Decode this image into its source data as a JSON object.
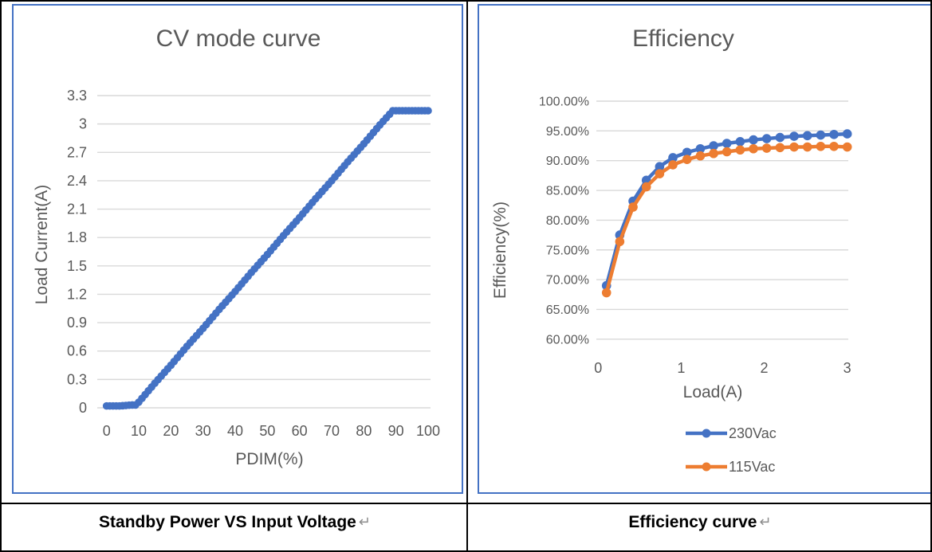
{
  "page": {
    "captions": [
      {
        "text": "Standby Power VS Input Voltage",
        "return_mark": "↵"
      },
      {
        "text": "Efficiency curve",
        "return_mark": "↵"
      }
    ],
    "colors": {
      "series_blue": "#4472C4",
      "series_orange": "#ED7D31",
      "grid": "#D9D9D9",
      "axis_text": "#595959",
      "chart_border": "#4472C4",
      "table_border": "#000000",
      "caption_text": "#000000",
      "return_mark_gray": "#8C8C8C"
    }
  },
  "chart_data": [
    {
      "type": "scatter",
      "title": "CV mode curve",
      "xlabel": "PDIM(%)",
      "ylabel": "Load Current(A)",
      "xlim": [
        0,
        100
      ],
      "ylim": [
        0,
        3.3
      ],
      "grid": true,
      "legend_position": "none",
      "xticks": [
        {
          "v": 0,
          "label": "0"
        },
        {
          "v": 10,
          "label": "10"
        },
        {
          "v": 20,
          "label": "20"
        },
        {
          "v": 30,
          "label": "30"
        },
        {
          "v": 40,
          "label": "40"
        },
        {
          "v": 50,
          "label": "50"
        },
        {
          "v": 60,
          "label": "60"
        },
        {
          "v": 70,
          "label": "70"
        },
        {
          "v": 80,
          "label": "80"
        },
        {
          "v": 90,
          "label": "90"
        },
        {
          "v": 100,
          "label": "100"
        }
      ],
      "yticks": [
        {
          "v": 0,
          "label": "0"
        },
        {
          "v": 0.3,
          "label": "0.3"
        },
        {
          "v": 0.6,
          "label": "0.6"
        },
        {
          "v": 0.9,
          "label": "0.9"
        },
        {
          "v": 1.2,
          "label": "1.2"
        },
        {
          "v": 1.5,
          "label": "1.5"
        },
        {
          "v": 1.8,
          "label": "1.8"
        },
        {
          "v": 2.1,
          "label": "2.1"
        },
        {
          "v": 2.4,
          "label": "2.4"
        },
        {
          "v": 2.7,
          "label": "2.7"
        },
        {
          "v": 3,
          "label": "3"
        },
        {
          "v": 3.3,
          "label": "3.3"
        }
      ],
      "series": [
        {
          "name": "Load Current",
          "color": "#4472C4",
          "style": "dense-markers",
          "marker_step_x": 1,
          "points": [
            [
              0,
              0.02
            ],
            [
              2,
              0.02
            ],
            [
              4,
              0.02
            ],
            [
              6,
              0.025
            ],
            [
              8,
              0.03
            ],
            [
              9,
              0.03
            ],
            [
              10,
              0.06
            ],
            [
              15,
              0.26
            ],
            [
              20,
              0.45
            ],
            [
              25,
              0.65
            ],
            [
              30,
              0.84
            ],
            [
              35,
              1.04
            ],
            [
              40,
              1.23
            ],
            [
              45,
              1.43
            ],
            [
              50,
              1.62
            ],
            [
              55,
              1.82
            ],
            [
              60,
              2.01
            ],
            [
              65,
              2.21
            ],
            [
              70,
              2.4
            ],
            [
              75,
              2.6
            ],
            [
              80,
              2.79
            ],
            [
              85,
              2.99
            ],
            [
              89,
              3.14
            ],
            [
              90,
              3.14
            ],
            [
              95,
              3.14
            ],
            [
              100,
              3.14
            ]
          ]
        }
      ]
    },
    {
      "type": "line",
      "title": "Efficiency",
      "xlabel": "Load(A)",
      "ylabel": "Efficiency(%)",
      "xlim": [
        0,
        3
      ],
      "ylim_percent": [
        60,
        100
      ],
      "grid": true,
      "legend_position": "bottom",
      "xticks": [
        {
          "v": 0,
          "label": "0"
        },
        {
          "v": 1,
          "label": "1"
        },
        {
          "v": 2,
          "label": "2"
        },
        {
          "v": 3,
          "label": "3"
        }
      ],
      "yticks": [
        {
          "v": 100,
          "label": "100.00%"
        },
        {
          "v": 95,
          "label": "95.00%"
        },
        {
          "v": 90,
          "label": "90.00%"
        },
        {
          "v": 85,
          "label": "85.00%"
        },
        {
          "v": 80,
          "label": "80.00%"
        },
        {
          "v": 75,
          "label": "75.00%"
        },
        {
          "v": 70,
          "label": "70.00%"
        },
        {
          "v": 65,
          "label": "65.00%"
        },
        {
          "v": 60,
          "label": "60.00%"
        }
      ],
      "x": [
        0.1,
        0.26,
        0.42,
        0.58,
        0.74,
        0.9,
        1.07,
        1.23,
        1.39,
        1.55,
        1.71,
        1.87,
        2.03,
        2.19,
        2.36,
        2.52,
        2.68,
        2.84,
        3.0
      ],
      "series": [
        {
          "name": "230Vac",
          "color": "#4472C4",
          "values_percent": [
            69.0,
            77.5,
            83.2,
            86.7,
            89.0,
            90.5,
            91.4,
            92.0,
            92.5,
            92.9,
            93.2,
            93.5,
            93.7,
            93.9,
            94.1,
            94.2,
            94.3,
            94.4,
            94.5
          ]
        },
        {
          "name": "115Vac",
          "color": "#ED7D31",
          "values_percent": [
            67.8,
            76.4,
            82.2,
            85.6,
            87.8,
            89.3,
            90.2,
            90.8,
            91.2,
            91.5,
            91.8,
            92.0,
            92.1,
            92.2,
            92.3,
            92.3,
            92.4,
            92.4,
            92.3
          ]
        }
      ]
    }
  ]
}
